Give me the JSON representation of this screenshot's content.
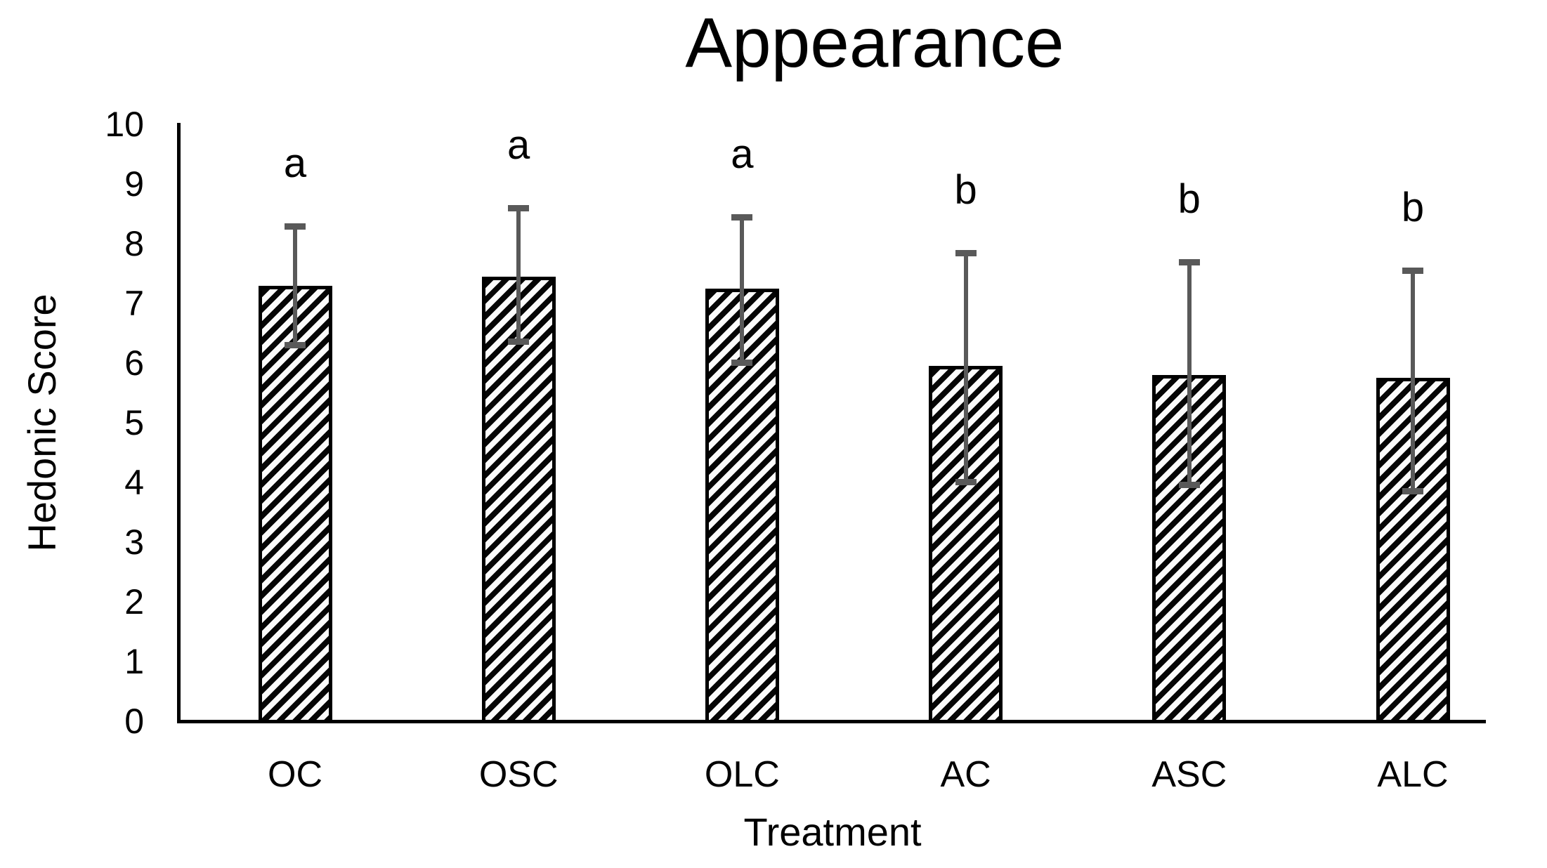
{
  "chart_data": {
    "type": "bar",
    "title": "Appearance",
    "xlabel": "Treatment",
    "ylabel": "Hedonic Score",
    "ylim": [
      0,
      10
    ],
    "yticks": [
      0,
      1,
      2,
      3,
      4,
      5,
      6,
      7,
      8,
      9,
      10
    ],
    "categories": [
      "OC",
      "OSC",
      "OLC",
      "AC",
      "ASC",
      "ALC"
    ],
    "values": [
      7.3,
      7.45,
      7.25,
      5.95,
      5.8,
      5.75
    ],
    "error_upper": [
      8.3,
      8.6,
      8.45,
      7.85,
      7.7,
      7.55
    ],
    "error_lower": [
      6.3,
      6.35,
      6.0,
      4.0,
      3.95,
      3.85
    ],
    "sig_letters": [
      "a",
      "a",
      "a",
      "b",
      "b",
      "b"
    ],
    "grid": "off",
    "legend": "none",
    "bar_fill": "black-white-upward-diagonal-hatch",
    "bar_border_color": "#000000",
    "error_bar_color": "#595959",
    "axis_color": "#000000",
    "text_color": "#000000",
    "background_color": "#ffffff"
  }
}
